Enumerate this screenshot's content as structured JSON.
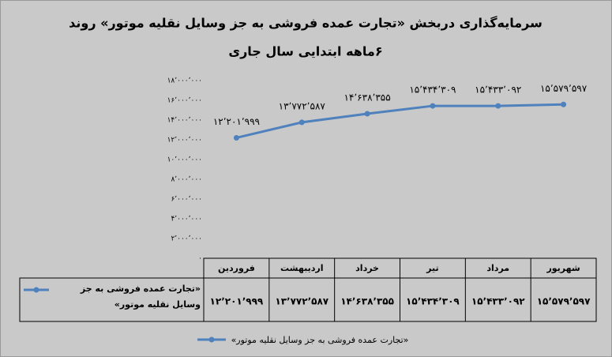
{
  "chart_data": {
    "type": "line",
    "title": "سرمایه‌گذاری دربخش «تجارت عمده فروشی به جز وسایل نقلیه موتور» روند",
    "subtitle": "۶ماهه ابتدایی سال جاری",
    "categories": [
      "فروردین",
      "اردیبهشت",
      "خرداد",
      "تیر",
      "مرداد",
      "شهریور"
    ],
    "series": [
      {
        "name": "«تجارت عمده فروشی به جز وسایل نقلیه موتور»",
        "color": "#4f81bd",
        "values": [
          12201999,
          13772587,
          14638355,
          15434309,
          15433092,
          15579597
        ],
        "value_labels": [
          "۱۲٬۲۰۱٬۹۹۹",
          "۱۳٬۷۷۲٬۵۸۷",
          "۱۴٬۶۳۸٬۳۵۵",
          "۱۵٬۴۳۴٬۳۰۹",
          "۱۵٬۴۳۳٬۰۹۲",
          "۱۵٬۵۷۹٬۵۹۷"
        ]
      }
    ],
    "ylim": [
      0,
      18000000
    ],
    "yticks": [
      {
        "value": 0,
        "label": "۰"
      },
      {
        "value": 2000000,
        "label": "۲٬۰۰۰٬۰۰۰"
      },
      {
        "value": 4000000,
        "label": "۴٬۰۰۰٬۰۰۰"
      },
      {
        "value": 6000000,
        "label": "۶٬۰۰۰٬۰۰۰"
      },
      {
        "value": 8000000,
        "label": "۸٬۰۰۰٬۰۰۰"
      },
      {
        "value": 10000000,
        "label": "۱۰٬۰۰۰٬۰۰۰"
      },
      {
        "value": 12000000,
        "label": "۱۲٬۰۰۰٬۰۰۰"
      },
      {
        "value": 14000000,
        "label": "۱۴٬۰۰۰٬۰۰۰"
      },
      {
        "value": 16000000,
        "label": "۱۶٬۰۰۰٬۰۰۰"
      },
      {
        "value": 18000000,
        "label": "۱۸٬۰۰۰٬۰۰۰"
      }
    ],
    "grid": false
  }
}
